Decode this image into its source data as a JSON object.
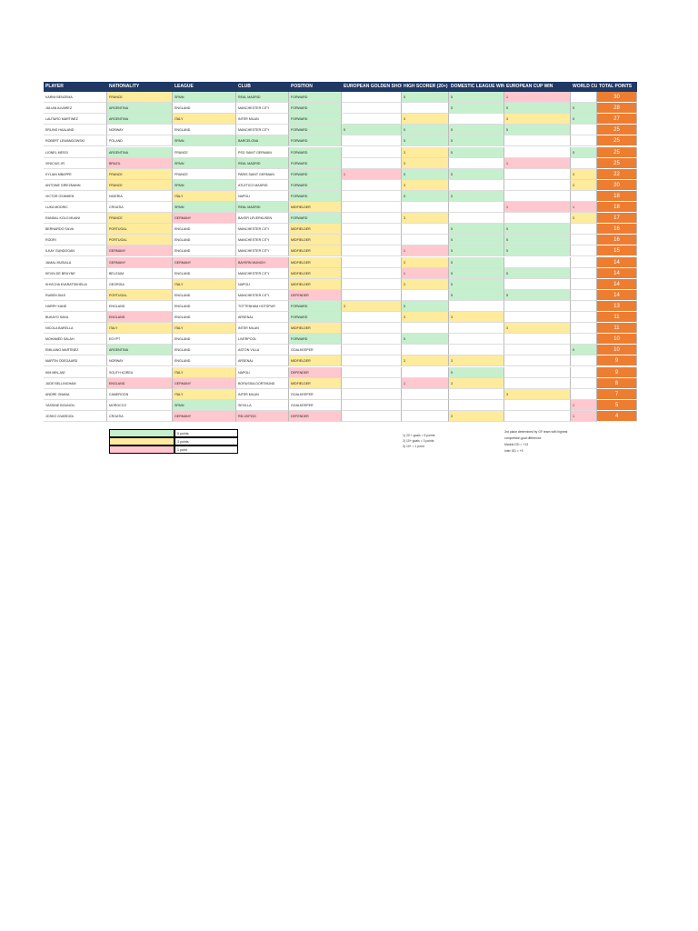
{
  "table": {
    "header": [
      "PLAYER",
      "NATIONALITY",
      "LEAGUE",
      "CLUB",
      "POSITION",
      "EUROPEAN GOLDEN SHOE",
      "HIGH SCORER (20+)",
      "DOMESTIC LEAGUE WIN",
      "EUROPEAN CUP WIN",
      "WORLD CUP",
      "TOTAL POINTS"
    ],
    "rows": [
      {
        "cells": [
          "KARIM BENZEMA",
          "FRANCE",
          "SPAIN",
          "REAL MADRID",
          "FORWARD",
          "",
          "5",
          "5",
          "1",
          "",
          "30"
        ],
        "fills": [
          "",
          "yellow",
          "green",
          "green",
          "green",
          "",
          "green",
          "green",
          "pink",
          "",
          ""
        ]
      },
      {
        "cells": [
          "JULIAN ALVAREZ",
          "ARGENTINA",
          "ENGLAND",
          "MANCHESTER CITY",
          "FORWARD",
          "",
          "",
          "5",
          "5",
          "5",
          "28"
        ],
        "fills": [
          "",
          "green",
          "",
          "",
          "green",
          "",
          "",
          "green",
          "green",
          "green",
          ""
        ]
      },
      {
        "cells": [
          "LAUTARO MARTINEZ",
          "ARGENTINA",
          "ITALY",
          "INTER MILAN",
          "FORWARD",
          "",
          "3",
          "",
          "3",
          "5",
          "27"
        ],
        "fills": [
          "",
          "green",
          "yellow",
          "",
          "green",
          "",
          "yellow",
          "",
          "yellow",
          "green",
          ""
        ]
      },
      {
        "cells": [
          "ERLING HAALAND",
          "NORWAY",
          "ENGLAND",
          "MANCHESTER CITY",
          "FORWARD",
          "5",
          "5",
          "5",
          "5",
          "",
          "25"
        ],
        "fills": [
          "",
          "",
          "",
          "",
          "green",
          "green",
          "green",
          "green",
          "green",
          "",
          ""
        ]
      },
      {
        "cells": [
          "ROBERT LEWANDOWSKI",
          "POLAND",
          "SPAIN",
          "BARCELONA",
          "FORWARD",
          "",
          "5",
          "5",
          "",
          "",
          "25"
        ],
        "fills": [
          "",
          "",
          "green",
          "green",
          "green",
          "",
          "green",
          "green",
          "",
          "",
          ""
        ]
      },
      {
        "cells": [
          "LIONEL MESSI",
          "ARGENTINA",
          "FRANCE",
          "PSG SAINT GERMAIN",
          "FORWARD",
          "",
          "3",
          "5",
          "",
          "5",
          "25"
        ],
        "fills": [
          "",
          "green",
          "",
          "",
          "green",
          "",
          "yellow",
          "green",
          "",
          "green",
          ""
        ]
      },
      {
        "cells": [
          "VINICIUS JR",
          "BRAZIL",
          "SPAIN",
          "REAL MADRID",
          "FORWARD",
          "",
          "3",
          "",
          "1",
          "",
          "25"
        ],
        "fills": [
          "",
          "pink",
          "green",
          "green",
          "green",
          "",
          "yellow",
          "",
          "pink",
          "",
          ""
        ]
      },
      {
        "cells": [
          "KYLIAN MBAPPE",
          "FRANCE",
          "FRANCE",
          "PARIS SAINT GERMAIN",
          "FORWARD",
          "1",
          "5",
          "5",
          "",
          "3",
          "22"
        ],
        "fills": [
          "",
          "yellow",
          "",
          "",
          "green",
          "pink",
          "green",
          "green",
          "",
          "yellow",
          ""
        ]
      },
      {
        "cells": [
          "ANTOINE GRIEZMANN",
          "FRANCE",
          "SPAIN",
          "ATLETICO MADRID",
          "FORWARD",
          "",
          "3",
          "",
          "",
          "3",
          "20"
        ],
        "fills": [
          "",
          "yellow",
          "green",
          "",
          "green",
          "",
          "yellow",
          "",
          "",
          "yellow",
          ""
        ]
      },
      {
        "cells": [
          "VICTOR OSIMHEN",
          "NIGERIA",
          "ITALY",
          "NAPOLI",
          "FORWARD",
          "",
          "5",
          "5",
          "",
          "",
          "18"
        ],
        "fills": [
          "",
          "",
          "yellow",
          "",
          "green",
          "",
          "green",
          "green",
          "",
          "",
          ""
        ]
      },
      {
        "cells": [
          "LUKA MODRIC",
          "CROATIA",
          "SPAIN",
          "REAL MADRID",
          "MIDFIELDER",
          "",
          "",
          "",
          "1",
          "1",
          "18"
        ],
        "fills": [
          "",
          "",
          "green",
          "green",
          "yellow",
          "",
          "",
          "",
          "pink",
          "pink",
          ""
        ]
      },
      {
        "cells": [
          "RANDAL KOLO MUANI",
          "FRANCE",
          "GERMANY",
          "BAYER LEVERKUSEN",
          "FORWARD",
          "",
          "3",
          "",
          "",
          "3",
          "17"
        ],
        "fills": [
          "",
          "yellow",
          "pink",
          "",
          "green",
          "",
          "yellow",
          "",
          "",
          "yellow",
          ""
        ]
      },
      {
        "cells": [
          "BERNARDO SILVA",
          "PORTUGAL",
          "ENGLAND",
          "MANCHESTER CITY",
          "MIDFIELDER",
          "",
          "",
          "5",
          "5",
          "",
          "16"
        ],
        "fills": [
          "",
          "yellow",
          "",
          "",
          "yellow",
          "",
          "",
          "green",
          "green",
          "",
          ""
        ]
      },
      {
        "cells": [
          "RODRI",
          "PORTUGAL",
          "ENGLAND",
          "MANCHESTER CITY",
          "MIDFIELDER",
          "",
          "",
          "5",
          "5",
          "",
          "16"
        ],
        "fills": [
          "",
          "yellow",
          "",
          "",
          "yellow",
          "",
          "",
          "green",
          "green",
          "",
          ""
        ]
      },
      {
        "cells": [
          "ILKAY GUNDOGAN",
          "GERMANY",
          "ENGLAND",
          "MANCHESTER CITY",
          "MIDFIELDER",
          "",
          "1",
          "5",
          "5",
          "",
          "15"
        ],
        "fills": [
          "",
          "pink",
          "",
          "",
          "yellow",
          "",
          "pink",
          "green",
          "green",
          "",
          ""
        ]
      },
      {
        "cells": [
          "JAMAL MUSIALA",
          "GERMANY",
          "GERMANY",
          "BAYERN MUNICH",
          "MIDFIELDER",
          "",
          "3",
          "5",
          "",
          "",
          "14"
        ],
        "fills": [
          "",
          "pink",
          "pink",
          "pink",
          "yellow",
          "",
          "yellow",
          "green",
          "",
          "",
          ""
        ]
      },
      {
        "cells": [
          "KEVIN DE BRUYNE",
          "BELGIUM",
          "ENGLAND",
          "MANCHESTER CITY",
          "MIDFIELDER",
          "",
          "1",
          "5",
          "5",
          "",
          "14"
        ],
        "fills": [
          "",
          "",
          "",
          "",
          "yellow",
          "",
          "pink",
          "green",
          "green",
          "",
          ""
        ]
      },
      {
        "cells": [
          "KHVICHA KVARATSKHELIA",
          "GEORGIA",
          "ITALY",
          "NAPOLI",
          "MIDFIELDER",
          "",
          "3",
          "5",
          "",
          "",
          "14"
        ],
        "fills": [
          "",
          "",
          "yellow",
          "",
          "yellow",
          "",
          "yellow",
          "green",
          "",
          "",
          ""
        ]
      },
      {
        "cells": [
          "RUBEN DIAS",
          "PORTUGAL",
          "ENGLAND",
          "MANCHESTER CITY",
          "DEFENDER",
          "",
          "",
          "5",
          "5",
          "",
          "14"
        ],
        "fills": [
          "",
          "yellow",
          "",
          "",
          "pink",
          "",
          "",
          "green",
          "green",
          "",
          ""
        ]
      },
      {
        "cells": [
          "HARRY KANE",
          "ENGLAND",
          "ENGLAND",
          "TOTTENHAM HOTSPUR",
          "FORWARD",
          "3",
          "5",
          "",
          "",
          "",
          "13"
        ],
        "fills": [
          "",
          "",
          "",
          "",
          "green",
          "yellow",
          "green",
          "",
          "",
          "",
          ""
        ]
      },
      {
        "cells": [
          "BUKAYO SAKA",
          "ENGLAND",
          "ENGLAND",
          "ARSENAL",
          "FORWARD",
          "",
          "3",
          "3",
          "",
          "",
          "11"
        ],
        "fills": [
          "",
          "pink",
          "",
          "",
          "green",
          "",
          "yellow",
          "yellow",
          "",
          "",
          ""
        ]
      },
      {
        "cells": [
          "NICOLA BARELLA",
          "ITALY",
          "ITALY",
          "INTER MILAN",
          "MIDFIELDER",
          "",
          "",
          "",
          "3",
          "",
          "11"
        ],
        "fills": [
          "",
          "yellow",
          "yellow",
          "",
          "yellow",
          "",
          "",
          "",
          "yellow",
          "",
          ""
        ]
      },
      {
        "cells": [
          "MOHAMED SALAH",
          "EGYPT",
          "ENGLAND",
          "LIVERPOOL",
          "FORWARD",
          "",
          "5",
          "",
          "",
          "",
          "10"
        ],
        "fills": [
          "",
          "",
          "",
          "",
          "green",
          "",
          "green",
          "",
          "",
          "",
          ""
        ]
      },
      {
        "cells": [
          "EMILIANO MARTINEZ",
          "ARGENTINA",
          "ENGLAND",
          "ASTON VILLA",
          "GOALKEEPER",
          "",
          "",
          "",
          "",
          "5",
          "10"
        ],
        "fills": [
          "",
          "green",
          "",
          "",
          "",
          "",
          "",
          "",
          "",
          "green",
          ""
        ]
      },
      {
        "cells": [
          "MARTIN ODEGAARD",
          "NORWAY",
          "ENGLAND",
          "ARSENAL",
          "MIDFIELDER",
          "",
          "3",
          "3",
          "",
          "",
          "9"
        ],
        "fills": [
          "",
          "",
          "",
          "",
          "yellow",
          "",
          "yellow",
          "yellow",
          "",
          "",
          ""
        ]
      },
      {
        "cells": [
          "KIM MIN-JAE",
          "SOUTH KOREA",
          "ITALY",
          "NAPOLI",
          "DEFENDER",
          "",
          "",
          "5",
          "",
          "",
          "9"
        ],
        "fills": [
          "",
          "",
          "yellow",
          "",
          "pink",
          "",
          "",
          "green",
          "",
          "",
          ""
        ]
      },
      {
        "cells": [
          "JUDE BELLINGHAM",
          "ENGLAND",
          "GERMANY",
          "BORUSSIA DORTMUND",
          "MIDFIELDER",
          "",
          "1",
          "3",
          "",
          "",
          "8"
        ],
        "fills": [
          "",
          "pink",
          "pink",
          "",
          "yellow",
          "",
          "pink",
          "yellow",
          "",
          "",
          ""
        ]
      },
      {
        "cells": [
          "ANDRE ONANA",
          "CAMEROON",
          "ITALY",
          "INTER MILAN",
          "GOALKEEPER",
          "",
          "",
          "",
          "3",
          "",
          "7"
        ],
        "fills": [
          "",
          "",
          "yellow",
          "",
          "",
          "",
          "",
          "",
          "yellow",
          "",
          ""
        ]
      },
      {
        "cells": [
          "YASSINE BOUNOU",
          "MOROCCO",
          "SPAIN",
          "SEVILLA",
          "GOALKEEPER",
          "",
          "",
          "",
          "",
          "1",
          "5"
        ],
        "fills": [
          "",
          "",
          "green",
          "",
          "",
          "",
          "",
          "",
          "",
          "pink",
          ""
        ]
      },
      {
        "cells": [
          "JOSKO GVARDIOL",
          "CROATIA",
          "GERMANY",
          "RB LEIPZIG",
          "DEFENDER",
          "",
          "",
          "3",
          "",
          "1",
          "4"
        ],
        "fills": [
          "",
          "",
          "pink",
          "pink",
          "pink",
          "",
          "",
          "yellow",
          "",
          "pink",
          ""
        ]
      }
    ]
  },
  "legend": [
    {
      "label": "5 points",
      "fill": "green"
    },
    {
      "label": "3 points",
      "fill": "yellow"
    },
    {
      "label": "1 point",
      "fill": "pink"
    }
  ],
  "notes": [
    "1) 20 + goals = 5 points",
    "2) 10+ goals = 3 points",
    "3) 10+ = 1 point"
  ],
  "tiebreak": [
    "3rd place determined by GF team with highest",
    "competition goal difference",
    "Madrid GD = +13",
    "Inter GD = +9"
  ],
  "palette": {
    "green": "#c6efce",
    "yellow": "#ffeb9c",
    "pink": "#ffc7ce",
    "header": "#1f3864",
    "total": "#ed7d31"
  }
}
